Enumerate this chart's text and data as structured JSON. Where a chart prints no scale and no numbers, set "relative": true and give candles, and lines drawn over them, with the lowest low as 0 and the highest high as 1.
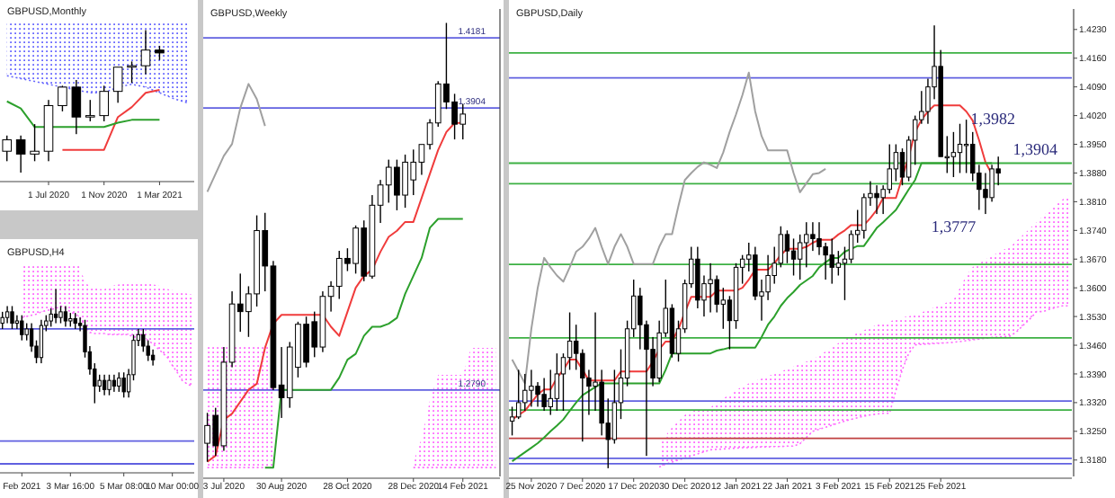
{
  "chart_data": [
    {
      "type": "candlestick",
      "title": "GBPUSD,Monthly",
      "relative": true,
      "tick_labels": "x",
      "categories": [
        null,
        null,
        null,
        "1 Jul 2020",
        null,
        null,
        null,
        "1 Nov 2020",
        null,
        null,
        null,
        "1 Mar 2021",
        null,
        null
      ],
      "ohlc": [
        [
          0.15,
          0.26,
          0.08,
          0.23
        ],
        [
          0.23,
          0.26,
          0,
          0.13
        ],
        [
          0.13,
          0.34,
          0.08,
          0.15
        ],
        [
          0.15,
          0.51,
          0.08,
          0.47
        ],
        [
          0.47,
          0.61,
          0.43,
          0.6
        ],
        [
          0.6,
          0.65,
          0.27,
          0.39
        ],
        [
          0.39,
          0.51,
          0.36,
          0.4
        ],
        [
          0.4,
          0.61,
          0.36,
          0.57
        ],
        [
          0.57,
          0.74,
          0.49,
          0.74
        ],
        [
          0.74,
          0.78,
          0.63,
          0.75
        ],
        [
          0.75,
          1,
          0.69,
          0.86
        ],
        [
          0.86,
          0.89,
          0.79,
          0.84
        ],
        null,
        null
      ],
      "series": [
        {
          "type": "line",
          "color": "#6666ff",
          "line_style": "dotted",
          "values": [
            0.68,
            0.66,
            0.64,
            0.62,
            0.6,
            0.58,
            0.56,
            0.56,
            0.6,
            0.62,
            0.6,
            0.56,
            0.52,
            0.49
          ],
          "lower": [
            0.68,
            0.66,
            0.64,
            0.62,
            0.6,
            0.58,
            0.56,
            0.56,
            0.6,
            0.62,
            0.6,
            0.56,
            0.52,
            0.49
          ],
          "upper": [
            1.06,
            1.06,
            1.06,
            1.06,
            1.06,
            1.06,
            1.06,
            1.06,
            1.06,
            1.06,
            1.06,
            1.06,
            1.06,
            1.06
          ]
        },
        {
          "type": "line",
          "color": "#f03c3c",
          "values": [
            null,
            null,
            null,
            null,
            0.16,
            0.16,
            0.16,
            0.16,
            0.39,
            0.46,
            0.56,
            0.58,
            null,
            null
          ]
        },
        {
          "type": "line",
          "color": "#2ca02c",
          "values": [
            0.5,
            0.45,
            0.32,
            0.32,
            0.32,
            0.32,
            0.32,
            0.32,
            0.35,
            0.37,
            0.37,
            0.37,
            null,
            null
          ]
        }
      ]
    },
    {
      "type": "candlestick",
      "title": "GBPUSD,H4",
      "relative": true,
      "tick_labels": "x",
      "categories": [
        null,
        null,
        null,
        null,
        "Feb 2021",
        null,
        null,
        null,
        null,
        null,
        null,
        null,
        null,
        null,
        "3 Mar 16:00",
        null,
        null,
        null,
        null,
        null,
        null,
        null,
        null,
        null,
        null,
        "5 Mar 08:00",
        null,
        null,
        null,
        null,
        null,
        null,
        null,
        null,
        null,
        "10 Mar 00:00",
        null,
        null,
        null,
        null
      ],
      "ohlc": [
        [
          0.7,
          0.8,
          0.65,
          0.75
        ],
        [
          0.75,
          0.85,
          0.7,
          0.8
        ],
        [
          0.8,
          0.85,
          0.65,
          0.7
        ],
        [
          0.7,
          0.77,
          0.65,
          0.72
        ],
        [
          0.72,
          0.77,
          0.55,
          0.6
        ],
        [
          0.6,
          0.7,
          0.55,
          0.65
        ],
        [
          0.65,
          0.7,
          0.45,
          0.5
        ],
        [
          0.5,
          0.55,
          0.35,
          0.4
        ],
        [
          0.4,
          0.73,
          0.35,
          0.68
        ],
        [
          0.68,
          0.77,
          0.63,
          0.72
        ],
        [
          0.72,
          0.83,
          0.67,
          0.78
        ],
        [
          0.78,
          1,
          0.7,
          0.75
        ],
        [
          0.75,
          0.85,
          0.7,
          0.8
        ],
        [
          0.8,
          0.85,
          0.67,
          0.72
        ],
        [
          0.72,
          0.79,
          0.67,
          0.74
        ],
        [
          0.74,
          0.79,
          0.65,
          0.7
        ],
        [
          0.7,
          0.75,
          0.63,
          0.68
        ],
        [
          0.68,
          0.73,
          0.4,
          0.45
        ],
        [
          0.45,
          0.5,
          0.25,
          0.3
        ],
        [
          0.3,
          0.35,
          0,
          0.15
        ],
        [
          0.15,
          0.25,
          0.1,
          0.2
        ],
        [
          0.2,
          0.25,
          0.07,
          0.12
        ],
        [
          0.12,
          0.25,
          0.07,
          0.2
        ],
        [
          0.2,
          0.25,
          0.1,
          0.15
        ],
        [
          0.15,
          0.27,
          0.1,
          0.22
        ],
        [
          0.22,
          0.27,
          0.05,
          0.1
        ],
        [
          0.1,
          0.3,
          0.05,
          0.25
        ],
        [
          0.25,
          0.6,
          0.2,
          0.55
        ],
        [
          0.55,
          0.65,
          0.5,
          0.6
        ],
        [
          0.6,
          0.65,
          0.45,
          0.5
        ],
        [
          0.5,
          0.55,
          0.37,
          0.42
        ],
        [
          0.42,
          0.47,
          0.33,
          0.38
        ],
        null,
        null,
        null,
        null,
        null,
        null,
        null,
        null
      ],
      "series": [
        {
          "type": "line",
          "color": "#ff66ff",
          "line_style": "dotted",
          "values": [
            null,
            null,
            null,
            null,
            0.75,
            0.76,
            0.77,
            0.78,
            0.8,
            0.81,
            0.82,
            0.83,
            0.85,
            0.83,
            0.8,
            0.78,
            0.75,
            0.68,
            0.62,
            0.61,
            0.61,
            0.61,
            0.6,
            0.6,
            0.6,
            0.6,
            0.6,
            0.58,
            0.58,
            0.58,
            0.55,
            0.52,
            0.48,
            0.44,
            0.4,
            0.33,
            0.27,
            0.2,
            0.17,
            0.15
          ],
          "lower": [
            null,
            null,
            null,
            null,
            0.75,
            0.76,
            0.77,
            0.78,
            0.8,
            0.81,
            0.82,
            0.83,
            0.85,
            0.83,
            0.8,
            0.78,
            0.75,
            0.68,
            0.62,
            0.61,
            0.61,
            0.61,
            0.6,
            0.6,
            0.6,
            0.6,
            0.6,
            0.58,
            0.58,
            0.58,
            0.55,
            0.52,
            0.48,
            0.44,
            0.4,
            0.33,
            0.27,
            0.2,
            0.17,
            0.15
          ],
          "upper": [
            null,
            null,
            null,
            null,
            1.2,
            1.2,
            1.2,
            1.2,
            1.2,
            1.2,
            1.2,
            1.2,
            1.2,
            1.2,
            1.2,
            1.2,
            1.2,
            1.05,
            1.03,
            1.01,
            1,
            1,
            1.02,
            1.03,
            1.04,
            1.05,
            1.05,
            1.05,
            1.05,
            1.05,
            1.05,
            1.04,
            1.03,
            1.02,
            1,
            0.99,
            0.98,
            0.97,
            0.96,
            0.95
          ]
        }
      ],
      "ref_lines": [
        {
          "axis": "y",
          "value": 0.65,
          "color": "#6060e0"
        },
        {
          "axis": "y",
          "value": -0.33,
          "color": "#6060e0"
        },
        {
          "axis": "y",
          "value": -0.53,
          "color": "#6060e0"
        }
      ]
    },
    {
      "type": "candlestick",
      "title": "GBPUSD,Weekly",
      "ylim": [
        1.2449,
        1.4295
      ],
      "yticks": [
        {
          "value": 1.279,
          "label": "1.2790"
        },
        {
          "value": 1.3904,
          "label": "1.3904"
        },
        {
          "value": 1.4181,
          "label": "1.4181"
        }
      ],
      "categories": [
        null,
        null,
        "3 Jul 2020",
        null,
        null,
        null,
        null,
        null,
        null,
        "30 Aug 2020",
        null,
        null,
        null,
        null,
        null,
        null,
        null,
        "28 Oct 2020",
        null,
        null,
        null,
        null,
        null,
        null,
        null,
        "28 Dec 2020",
        null,
        null,
        null,
        null,
        null,
        "14 Feb 2021",
        null,
        null,
        null,
        null
      ],
      "ohlc": [
        [
          1.258,
          1.27,
          1.2507,
          1.265
        ],
        [
          1.269,
          1.272,
          1.253,
          1.257
        ],
        [
          1.257,
          1.296,
          1.255,
          1.29
        ],
        [
          1.29,
          1.318,
          1.288,
          1.313
        ],
        [
          1.313,
          1.325,
          1.302,
          1.31
        ],
        [
          1.31,
          1.32,
          1.3,
          1.317
        ],
        [
          1.317,
          1.348,
          1.312,
          1.342
        ],
        [
          1.342,
          1.349,
          1.318,
          1.328
        ],
        [
          1.328,
          1.33,
          1.279,
          1.28
        ],
        [
          1.281,
          1.296,
          1.268,
          1.276
        ],
        [
          1.276,
          1.298,
          1.272,
          1.296
        ],
        [
          1.288,
          1.306,
          1.284,
          1.305
        ],
        [
          1.305,
          1.308,
          1.288,
          1.29
        ],
        [
          1.306,
          1.31,
          1.292,
          1.296
        ],
        [
          1.296,
          1.318,
          1.294,
          1.316
        ],
        [
          1.316,
          1.322,
          1.31,
          1.32
        ],
        [
          1.32,
          1.334,
          1.315,
          1.331
        ],
        [
          1.331,
          1.335,
          1.326,
          1.329
        ],
        [
          1.329,
          1.344,
          1.325,
          1.343
        ],
        [
          1.343,
          1.346,
          1.322,
          1.324
        ],
        [
          1.324,
          1.356,
          1.323,
          1.352
        ],
        [
          1.352,
          1.362,
          1.345,
          1.36
        ],
        [
          1.36,
          1.37,
          1.353,
          1.367
        ],
        [
          1.367,
          1.37,
          1.35,
          1.356
        ],
        [
          1.356,
          1.372,
          1.351,
          1.369
        ],
        [
          1.362,
          1.374,
          1.356,
          1.369
        ],
        [
          1.369,
          1.376,
          1.364,
          1.376
        ],
        [
          1.376,
          1.386,
          1.374,
          1.3845
        ],
        [
          1.3845,
          1.401,
          1.383,
          1.3999
        ],
        [
          1.3999,
          1.424,
          1.39,
          1.3928
        ],
        [
          1.3928,
          1.396,
          1.378,
          1.384
        ],
        [
          1.384,
          1.392,
          1.378,
          1.388
        ],
        null,
        null,
        null,
        null
      ],
      "series": [
        {
          "type": "line",
          "color": "#ff66ff",
          "line_style": "dotted",
          "values": [
            1.2484,
            1.2484,
            1.2484,
            1.2484,
            1.2484,
            1.2484,
            1.2484,
            1.2484,
            1.2484,
            null,
            null,
            null,
            null,
            null,
            null,
            null,
            null,
            null,
            null,
            null,
            null,
            null,
            null,
            null,
            null,
            1.2484,
            1.2484,
            1.2484,
            1.2484,
            1.2484,
            1.2484,
            1.2484,
            1.2484,
            1.2484,
            1.2484,
            1.2484
          ],
          "lower": [
            1.2484,
            1.2484,
            1.2484,
            1.2484,
            1.2484,
            1.2484,
            1.2484,
            1.2484,
            1.2484,
            null,
            null,
            null,
            null,
            null,
            null,
            null,
            null,
            null,
            null,
            null,
            null,
            null,
            null,
            null,
            null,
            1.2484,
            1.2484,
            1.2484,
            1.2484,
            1.2484,
            1.2484,
            1.2484,
            1.2484,
            1.2484,
            1.2484,
            1.2484
          ],
          "upper": [
            1.297,
            1.297,
            1.297,
            1.297,
            1.297,
            1.297,
            1.297,
            1.297,
            1.297,
            null,
            null,
            null,
            null,
            null,
            null,
            null,
            null,
            null,
            null,
            null,
            null,
            null,
            null,
            null,
            null,
            1.2507,
            1.26,
            1.275,
            1.285,
            1.285,
            1.285,
            1.285,
            1.2957,
            1.2957,
            1.2957,
            1.2957
          ]
        },
        {
          "type": "line",
          "color": "#a0a0a0",
          "values": [
            1.3573,
            1.3644,
            1.3715,
            1.3762,
            1.3904,
            1.3999,
            1.3939,
            1.3833,
            null,
            null,
            null,
            null,
            null,
            null,
            null,
            null,
            null,
            null,
            null,
            null,
            null,
            null,
            null,
            null,
            null,
            null,
            null,
            null,
            null,
            null,
            null,
            null,
            null,
            null,
            null,
            null
          ]
        },
        {
          "type": "line",
          "color": "#f03c3c",
          "values": [
            1.2507,
            1.2531,
            1.2673,
            1.2697,
            1.2744,
            1.2791,
            1.2815,
            1.2957,
            1.3052,
            1.3087,
            1.3087,
            1.3087,
            1.3087,
            1.3087,
            1.3087,
            1.304,
            1.3004,
            1.3099,
            1.3194,
            1.3241,
            1.3265,
            1.3336,
            1.3395,
            1.3419,
            1.3454,
            1.3454,
            1.3549,
            1.3644,
            1.3738,
            1.3809,
            1.3845,
            1.3845,
            null,
            null,
            null,
            null
          ]
        },
        {
          "type": "line",
          "color": "#2ca02c",
          "values": [
            null,
            null,
            null,
            null,
            null,
            null,
            null,
            1.2484,
            1.2484,
            1.2791,
            1.2791,
            1.2791,
            1.2791,
            1.2791,
            1.2791,
            1.2791,
            1.2839,
            1.291,
            1.2933,
            1.3004,
            1.304,
            1.304,
            1.3052,
            1.3075,
            1.317,
            1.3241,
            1.3312,
            1.3431,
            1.3466,
            1.3466,
            1.3466,
            1.3466,
            null,
            null,
            null,
            null
          ]
        }
      ],
      "ref_lines": [
        {
          "axis": "y",
          "value": 1.4181,
          "color": "#6060e0"
        },
        {
          "axis": "y",
          "value": 1.3904,
          "color": "#6060e0"
        },
        {
          "axis": "y",
          "value": 1.279,
          "color": "#6060e0"
        }
      ]
    },
    {
      "type": "candlestick",
      "title": "GBPUSD,Daily",
      "ylim": [
        1.314,
        1.428
      ],
      "yticks": [
        {
          "value": 1.318,
          "label": "1.3180"
        },
        {
          "value": 1.325,
          "label": "1.3250"
        },
        {
          "value": 1.332,
          "label": "1.3320"
        },
        {
          "value": 1.339,
          "label": "1.3390"
        },
        {
          "value": 1.346,
          "label": "1.3460"
        },
        {
          "value": 1.353,
          "label": "1.3530"
        },
        {
          "value": 1.36,
          "label": "1.3600"
        },
        {
          "value": 1.367,
          "label": "1.3670"
        },
        {
          "value": 1.374,
          "label": "1.3740"
        },
        {
          "value": 1.381,
          "label": "1.3810"
        },
        {
          "value": 1.388,
          "label": "1.3880"
        },
        {
          "value": 1.395,
          "label": "1.3950"
        },
        {
          "value": 1.402,
          "label": "1.4020"
        },
        {
          "value": 1.409,
          "label": "1.4090"
        },
        {
          "value": 1.416,
          "label": "1.4160"
        },
        {
          "value": 1.423,
          "label": "1.4230"
        }
      ],
      "categories": [
        null,
        null,
        null,
        "25 Nov 2020",
        null,
        null,
        null,
        null,
        null,
        null,
        null,
        "7 Dec 2020",
        null,
        null,
        null,
        null,
        null,
        null,
        null,
        "17 Dec 2020",
        null,
        null,
        null,
        null,
        null,
        null,
        null,
        "30 Dec 2020",
        null,
        null,
        null,
        null,
        null,
        null,
        null,
        "12 Jan 2021",
        null,
        null,
        null,
        null,
        null,
        null,
        null,
        "22 Jan 2021",
        null,
        null,
        null,
        null,
        null,
        null,
        null,
        "3 Feb 2021",
        null,
        null,
        null,
        null,
        null,
        null,
        null,
        "15 Feb 2021",
        null,
        null,
        null,
        null,
        null,
        null,
        null,
        "25 Feb 2021",
        null,
        null,
        null,
        null,
        null,
        null,
        null,
        null,
        null,
        null,
        null,
        null,
        null,
        null,
        null,
        null,
        null,
        null,
        null,
        null
      ],
      "ohlc": [
        [
          1.3275,
          1.331,
          1.324,
          1.3285
        ],
        [
          1.3285,
          1.34,
          1.328,
          1.332
        ],
        [
          1.332,
          1.339,
          1.33,
          1.335
        ],
        [
          1.335,
          1.34,
          1.331,
          1.336
        ],
        [
          1.336,
          1.337,
          1.331,
          1.334
        ],
        [
          1.334,
          1.338,
          1.33,
          1.331
        ],
        [
          1.331,
          1.34,
          1.329,
          1.333
        ],
        [
          1.333,
          1.344,
          1.33,
          1.339
        ],
        [
          1.339,
          1.344,
          1.33,
          1.343
        ],
        [
          1.343,
          1.354,
          1.34,
          1.347
        ],
        [
          1.347,
          1.351,
          1.34,
          1.344
        ],
        [
          1.344,
          1.345,
          1.3225,
          1.338
        ],
        [
          1.338,
          1.34,
          1.329,
          1.336
        ],
        [
          1.336,
          1.354,
          1.33,
          1.337
        ],
        [
          1.337,
          1.34,
          1.324,
          1.327
        ],
        [
          1.327,
          1.333,
          1.316,
          1.323
        ],
        [
          1.323,
          1.34,
          1.322,
          1.332
        ],
        [
          1.332,
          1.345,
          1.328,
          1.338
        ],
        [
          1.338,
          1.352,
          1.336,
          1.35
        ],
        [
          1.35,
          1.362,
          1.348,
          1.358
        ],
        [
          1.358,
          1.36,
          1.345,
          1.351
        ],
        [
          1.351,
          1.352,
          1.319,
          1.345
        ],
        [
          1.345,
          1.348,
          1.336,
          1.338
        ],
        [
          1.338,
          1.352,
          1.337,
          1.349
        ],
        [
          1.349,
          1.362,
          1.348,
          1.355
        ],
        [
          1.355,
          1.356,
          1.343,
          1.344
        ],
        [
          1.344,
          1.352,
          1.342,
          1.35
        ],
        [
          1.35,
          1.362,
          1.349,
          1.361
        ],
        [
          1.361,
          1.37,
          1.36,
          1.367
        ],
        [
          1.367,
          1.37,
          1.355,
          1.357
        ],
        [
          1.357,
          1.363,
          1.353,
          1.361
        ],
        [
          1.361,
          1.366,
          1.354,
          1.362
        ],
        [
          1.362,
          1.363,
          1.354,
          1.356
        ],
        [
          1.356,
          1.36,
          1.35,
          1.357
        ],
        [
          1.357,
          1.358,
          1.345,
          1.352
        ],
        [
          1.352,
          1.366,
          1.35,
          1.365
        ],
        [
          1.365,
          1.368,
          1.361,
          1.367
        ],
        [
          1.367,
          1.371,
          1.364,
          1.368
        ],
        [
          1.368,
          1.37,
          1.357,
          1.358
        ],
        [
          1.358,
          1.362,
          1.352,
          1.359
        ],
        [
          1.359,
          1.368,
          1.357,
          1.363
        ],
        [
          1.363,
          1.37,
          1.361,
          1.366
        ],
        [
          1.366,
          1.375,
          1.365,
          1.373
        ],
        [
          1.373,
          1.374,
          1.366,
          1.369
        ],
        [
          1.369,
          1.372,
          1.363,
          1.367
        ],
        [
          1.367,
          1.373,
          1.362,
          1.371
        ],
        [
          1.371,
          1.376,
          1.365,
          1.373
        ],
        [
          1.373,
          1.376,
          1.369,
          1.372
        ],
        [
          1.372,
          1.376,
          1.368,
          1.37
        ],
        [
          1.37,
          1.371,
          1.362,
          1.368
        ],
        [
          1.368,
          1.372,
          1.361,
          1.365
        ],
        [
          1.365,
          1.369,
          1.363,
          1.366
        ],
        [
          1.366,
          1.37,
          1.357,
          1.367
        ],
        [
          1.367,
          1.374,
          1.366,
          1.373
        ],
        [
          1.373,
          1.379,
          1.371,
          1.374
        ],
        [
          1.374,
          1.383,
          1.372,
          1.382
        ],
        [
          1.382,
          1.386,
          1.38,
          1.383
        ],
        [
          1.383,
          1.385,
          1.378,
          1.382
        ],
        [
          1.382,
          1.385,
          1.378,
          1.384
        ],
        [
          1.384,
          1.395,
          1.383,
          1.389
        ],
        [
          1.389,
          1.395,
          1.386,
          1.393
        ],
        [
          1.393,
          1.394,
          1.385,
          1.387
        ],
        [
          1.387,
          1.397,
          1.386,
          1.396
        ],
        [
          1.396,
          1.402,
          1.39,
          1.401
        ],
        [
          1.401,
          1.408,
          1.4,
          1.403
        ],
        [
          1.403,
          1.411,
          1.4,
          1.409
        ],
        [
          1.409,
          1.424,
          1.406,
          1.414
        ],
        [
          1.414,
          1.418,
          1.392,
          1.392
        ],
        [
          1.392,
          1.397,
          1.388,
          1.392
        ],
        [
          1.392,
          1.398,
          1.387,
          1.393
        ],
        [
          1.393,
          1.4,
          1.388,
          1.395
        ],
        [
          1.395,
          1.401,
          1.388,
          1.395
        ],
        [
          1.395,
          1.398,
          1.386,
          1.388
        ],
        [
          1.388,
          1.39,
          1.379,
          1.384
        ],
        [
          1.384,
          1.388,
          1.378,
          1.382
        ],
        [
          1.382,
          1.39,
          1.381,
          1.389
        ],
        [
          1.389,
          1.392,
          1.385,
          1.388
        ],
        null,
        null,
        null,
        null,
        null,
        null,
        null,
        null,
        null,
        null,
        null
      ],
      "series": [
        {
          "type": "line",
          "color": "#ff66ff",
          "line_style": "dotted",
          "values": [
            null,
            null,
            null,
            null,
            null,
            null,
            null,
            null,
            null,
            null,
            null,
            null,
            null,
            null,
            null,
            null,
            null,
            null,
            null,
            null,
            null,
            null,
            null,
            1.3163,
            1.317,
            1.3175,
            1.318,
            1.3185,
            1.319,
            1.3195,
            1.32,
            1.3205,
            1.3206,
            1.3207,
            1.3208,
            1.3209,
            1.321,
            1.321,
            1.3211,
            1.3212,
            1.3212,
            1.3213,
            1.3213,
            1.3214,
            1.3214,
            1.322,
            1.3235,
            1.325,
            1.3255,
            1.326,
            1.3265,
            1.327,
            1.3275,
            1.3279,
            1.3283,
            1.3287,
            1.329,
            1.3292,
            1.3294,
            1.3294,
            1.335,
            1.34,
            1.344,
            1.3461,
            1.3462,
            1.3463,
            1.3464,
            1.3465,
            1.3466,
            1.3467,
            1.3469,
            1.3471,
            1.3473,
            1.3475,
            1.3477,
            1.3479,
            1.348,
            1.3481,
            1.3483,
            1.3495,
            1.351,
            1.3525,
            1.3542,
            1.3542,
            1.3548,
            1.3552,
            1.3556,
            1.3556
          ],
          "lower": [
            null,
            null,
            null,
            null,
            null,
            null,
            null,
            null,
            null,
            null,
            null,
            null,
            null,
            null,
            null,
            null,
            null,
            null,
            null,
            null,
            null,
            null,
            null,
            1.3163,
            1.317,
            1.3175,
            1.318,
            1.3185,
            1.319,
            1.3195,
            1.32,
            1.3205,
            1.3206,
            1.3207,
            1.3208,
            1.3209,
            1.321,
            1.321,
            1.3211,
            1.3212,
            1.3212,
            1.3213,
            1.3213,
            1.3214,
            1.3214,
            1.322,
            1.3235,
            1.325,
            1.3255,
            1.326,
            1.3265,
            1.327,
            1.3275,
            1.3279,
            1.3283,
            1.3287,
            1.329,
            1.3292,
            1.3294,
            1.3294,
            1.335,
            1.34,
            1.344,
            1.3461,
            1.3462,
            1.3463,
            1.3464,
            1.3465,
            1.3466,
            1.3467,
            1.3469,
            1.3471,
            1.3473,
            1.3475,
            1.3477,
            1.3479,
            1.348,
            1.3481,
            1.3483,
            1.3495,
            1.351,
            1.3525,
            1.3542,
            1.3542,
            1.3548,
            1.3552,
            1.3556,
            1.3556
          ],
          "upper": [
            null,
            null,
            null,
            null,
            null,
            null,
            null,
            null,
            null,
            null,
            null,
            null,
            null,
            null,
            null,
            null,
            null,
            null,
            null,
            null,
            null,
            null,
            null,
            1.3221,
            1.324,
            1.326,
            1.3275,
            1.329,
            1.33,
            1.3305,
            1.3308,
            1.3308,
            1.332,
            1.333,
            1.334,
            1.335,
            1.336,
            1.3367,
            1.3373,
            1.3379,
            1.3385,
            1.339,
            1.3396,
            1.3402,
            1.3408,
            1.3414,
            1.342,
            1.3425,
            1.3435,
            1.3445,
            1.3455,
            1.3465,
            1.3475,
            1.3483,
            1.349,
            1.3497,
            1.3503,
            1.351,
            1.3513,
            1.3518,
            1.3523,
            1.3528,
            1.3531,
            1.3534,
            1.354,
            1.3546,
            1.3552,
            1.3558,
            1.3565,
            1.3571,
            1.36,
            1.363,
            1.3651,
            1.366,
            1.3669,
            1.3678,
            1.3686,
            1.3694,
            1.3702,
            1.3717,
            1.3731,
            1.3746,
            1.376,
            1.3775,
            1.379,
            1.3804,
            1.3815,
            1.3825
          ]
        },
        {
          "type": "line",
          "color": "#a0a0a0",
          "values": [
            1.3425,
            1.3396,
            1.3367,
            1.35,
            1.36,
            1.3673,
            1.365,
            1.363,
            1.3615,
            1.365,
            1.3688,
            1.37,
            1.372,
            1.3746,
            1.37,
            1.3658,
            1.37,
            1.3731,
            1.37,
            1.3658,
            1.3658,
            1.3658,
            1.3658,
            1.37,
            1.3731,
            1.3731,
            1.38,
            1.3863,
            1.388,
            1.3895,
            1.3906,
            1.39,
            1.3892,
            1.393,
            1.398,
            1.4023,
            1.407,
            1.4125,
            1.403,
            1.397,
            1.3935,
            1.3935,
            1.3935,
            1.3935,
            1.388,
            1.3833,
            1.3855,
            1.3877,
            1.388,
            1.389,
            null,
            null,
            null,
            null,
            null,
            null,
            null,
            null,
            null,
            null,
            null,
            null,
            null,
            null,
            null,
            null,
            null,
            null,
            null,
            null,
            null,
            null,
            null,
            null,
            null,
            null,
            null,
            null,
            null,
            null,
            null,
            null,
            null,
            null,
            null,
            null,
            null,
            null
          ]
        },
        {
          "type": "line",
          "color": "#f03c3c",
          "values": [
            1.3279,
            1.329,
            1.33,
            1.332,
            1.334,
            1.3352,
            1.3352,
            1.338,
            1.34,
            1.3425,
            1.3425,
            1.34,
            1.3374,
            1.3374,
            1.3374,
            1.3374,
            1.3374,
            1.3396,
            1.3396,
            1.3396,
            1.3396,
            1.3396,
            1.342,
            1.345,
            1.3469,
            1.3469,
            1.35,
            1.354,
            1.3578,
            1.3578,
            1.3578,
            1.3578,
            1.3593,
            1.3593,
            1.3593,
            1.3593,
            1.36,
            1.362,
            1.3644,
            1.3644,
            1.3644,
            1.366,
            1.368,
            1.3695,
            1.3695,
            1.3695,
            1.37,
            1.371,
            1.3717,
            1.3717,
            1.3717,
            1.373,
            1.374,
            1.3753,
            1.3753,
            1.3753,
            1.377,
            1.379,
            1.3819,
            1.3819,
            1.3819,
            1.387,
            1.392,
            1.398,
            1.401,
            1.403,
            1.4045,
            1.4045,
            1.4045,
            1.4045,
            1.4045,
            1.403,
            1.4008,
            1.396,
            1.3906,
            1.3877,
            null,
            null,
            null,
            null,
            null,
            null,
            null,
            null,
            null,
            null,
            null,
            null
          ]
        },
        {
          "type": "line",
          "color": "#2ca02c",
          "values": [
            1.3177,
            1.3188,
            1.3199,
            1.321,
            1.3221,
            1.3235,
            1.325,
            1.3264,
            1.3279,
            1.33,
            1.332,
            1.3338,
            1.3348,
            1.3358,
            1.3367,
            1.3367,
            1.3367,
            1.3367,
            1.3367,
            1.3367,
            1.3367,
            1.3367,
            1.3367,
            1.3367,
            1.34,
            1.344,
            1.344,
            1.344,
            1.344,
            1.344,
            1.344,
            1.344,
            1.3447,
            1.345,
            1.3454,
            1.3454,
            1.3454,
            1.3454,
            1.3454,
            1.348,
            1.351,
            1.353,
            1.3556,
            1.3575,
            1.359,
            1.3607,
            1.3618,
            1.3629,
            1.365,
            1.3662,
            1.3673,
            1.3673,
            1.3688,
            1.3695,
            1.3702,
            1.3702,
            1.3724,
            1.3746,
            1.376,
            1.3775,
            1.379,
            1.3815,
            1.384,
            1.3863,
            1.3904,
            1.3904,
            1.3904,
            1.3904,
            1.3904,
            1.3904,
            1.3904,
            1.3904,
            1.3904,
            1.3904,
            1.3904,
            1.3904,
            null,
            null,
            null,
            null,
            null,
            null,
            null,
            null,
            null,
            null,
            null,
            null
          ]
        }
      ],
      "ref_lines": [
        {
          "axis": "y",
          "value": 1.4173,
          "color": "#3cb043"
        },
        {
          "axis": "y",
          "value": 1.4112,
          "color": "#6060e0"
        },
        {
          "axis": "y",
          "value": 1.3904,
          "color": "#3cb043"
        },
        {
          "axis": "y",
          "value": 1.3854,
          "color": "#3cb043"
        },
        {
          "axis": "y",
          "value": 1.3657,
          "color": "#3cb043"
        },
        {
          "axis": "y",
          "value": 1.3478,
          "color": "#3cb043"
        },
        {
          "axis": "y",
          "value": 1.3324,
          "color": "#6060e0"
        },
        {
          "axis": "y",
          "value": 1.3302,
          "color": "#3cb043"
        },
        {
          "axis": "y",
          "value": 1.3233,
          "color": "#c04040"
        },
        {
          "axis": "y",
          "value": 1.3184,
          "color": "#6060e0"
        },
        {
          "axis": "y",
          "value": 1.3171,
          "color": "#6060e0"
        }
      ],
      "annotations": [
        "1,3982",
        "1,3904",
        "1,3777"
      ]
    }
  ]
}
